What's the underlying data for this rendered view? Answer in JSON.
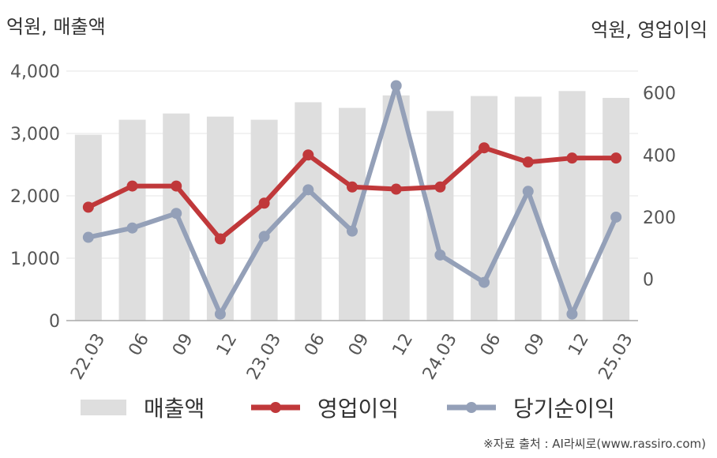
{
  "unit_left": "억원, 매출액",
  "unit_right": "억원, 영업이익",
  "source": "※자료 출처 : AI라씨로(www.rassiro.com)",
  "colors": {
    "bar": "#dedede",
    "op": "#c0383a",
    "net": "#94a0b8",
    "grid": "#e6e6e6",
    "axis": "#aaaaaa"
  },
  "chart_data": {
    "type": "bar+line",
    "categories": [
      "22.03",
      "06",
      "09",
      "12",
      "23.03",
      "06",
      "09",
      "12",
      "24.03",
      "06",
      "09",
      "12",
      "25.03"
    ],
    "series": [
      {
        "name": "매출액",
        "type": "bar",
        "axis": "left",
        "values": [
          2980,
          3220,
          3320,
          3270,
          3220,
          3500,
          3410,
          3610,
          3360,
          3600,
          3590,
          3680,
          3570
        ]
      },
      {
        "name": "영업이익",
        "type": "line",
        "axis": "right",
        "values": [
          232,
          300,
          300,
          130,
          245,
          400,
          297,
          290,
          297,
          423,
          377,
          390,
          390
        ]
      },
      {
        "name": "당기순이익",
        "type": "line",
        "axis": "right",
        "values": [
          135,
          165,
          212,
          -112,
          138,
          288,
          155,
          623,
          78,
          -10,
          283,
          -112,
          200
        ]
      }
    ],
    "y_left": {
      "ticks": [
        "0",
        "1,000",
        "2,000",
        "3,000",
        "4,000"
      ],
      "values": [
        0,
        1000,
        2000,
        3000,
        4000
      ],
      "range": [
        0,
        4000
      ]
    },
    "y_right": {
      "ticks": [
        "0",
        "200",
        "400",
        "600"
      ],
      "values": [
        0,
        200,
        400,
        600
      ],
      "range": [
        -133,
        670
      ]
    },
    "grid": true,
    "legend_position": "bottom"
  }
}
